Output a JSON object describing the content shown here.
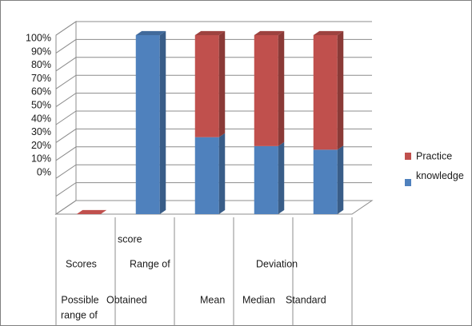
{
  "chart_data": {
    "type": "bar",
    "stacked": true,
    "percent_stacked": true,
    "three_d": true,
    "categories": [
      [
        "Possible",
        "range of",
        "Scores"
      ],
      [
        "Range of",
        "score",
        "Obtained"
      ],
      [
        "Mean"
      ],
      [
        "Median"
      ],
      [
        "Standard",
        "Deviation"
      ]
    ],
    "series": [
      {
        "name": "knowledge",
        "color": "#4f81bd",
        "values": [
          0,
          100,
          43,
          38,
          36
        ]
      },
      {
        "name": "Practice",
        "color": "#c0504d",
        "values": [
          0,
          0,
          57,
          62,
          64
        ]
      }
    ],
    "y_ticks": [
      "100%",
      "90%",
      "80%",
      "70%",
      "60%",
      "50%",
      "40%",
      "30%",
      "20%",
      "10%",
      "0%"
    ],
    "ylim": [
      0,
      100
    ],
    "grid": true,
    "legend_position": "right",
    "legend_order": [
      "Practice",
      "knowledge"
    ]
  }
}
